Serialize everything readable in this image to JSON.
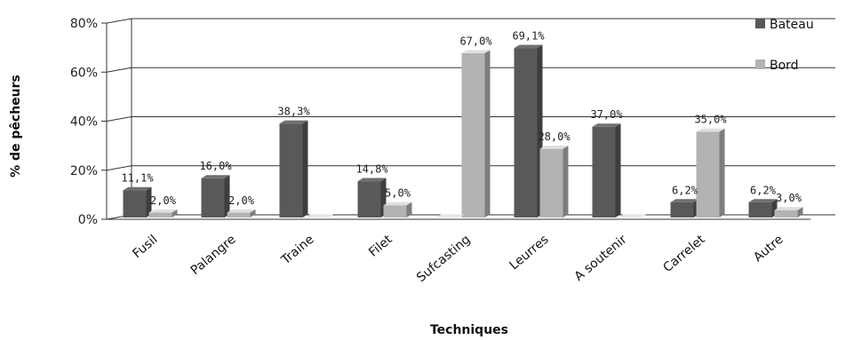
{
  "chart_data": {
    "type": "bar",
    "title": "",
    "xlabel": "Techniques",
    "ylabel": "% de pêcheurs",
    "ylim": [
      0,
      80
    ],
    "yticks": [
      "0%",
      "20%",
      "40%",
      "60%",
      "80%"
    ],
    "ytick_values": [
      0,
      20,
      40,
      60,
      80
    ],
    "grid": true,
    "legend_position": "top-right",
    "categories": [
      "Fusil",
      "Palangre",
      "Traine",
      "Filet",
      "Sufcasting",
      "Leurres",
      "A soutenir",
      "Carrelet",
      "Autre"
    ],
    "series": [
      {
        "name": "Bateau",
        "color": "#595959",
        "values": [
          11.1,
          16.0,
          38.3,
          14.8,
          null,
          69.1,
          37.0,
          6.2,
          6.2
        ],
        "labels": [
          "11,1%",
          "16,0%",
          "38,3%",
          "14,8%",
          "",
          "69,1%",
          "37,0%",
          "6,2%",
          "6,2%"
        ]
      },
      {
        "name": "Bord",
        "color": "#b3b3b3",
        "values": [
          2.0,
          2.0,
          null,
          5.0,
          67.0,
          28.0,
          null,
          35.0,
          3.0
        ],
        "labels": [
          "2,0%",
          "2,0%",
          "",
          "5,0%",
          "67,0%",
          "28,0%",
          "",
          "35,0%",
          "3,0%"
        ]
      }
    ]
  }
}
